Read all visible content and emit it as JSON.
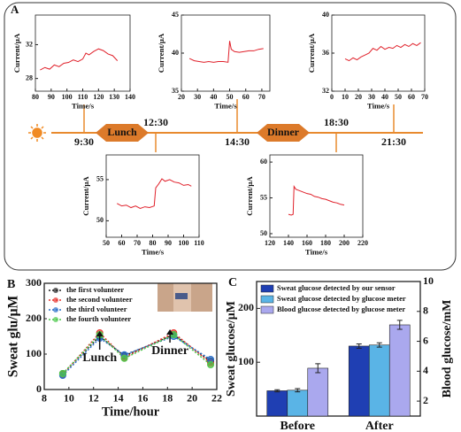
{
  "panel_a": {
    "label": "A",
    "times": [
      "9:30",
      "12:30",
      "14:30",
      "18:30",
      "21:30"
    ],
    "meals": [
      "Lunch",
      "Dinner"
    ]
  },
  "chart_data": [
    {
      "type": "line",
      "xlabel": "Time/s",
      "ylabel": "Current/μA",
      "color": "#e0202a",
      "x": [
        83,
        86,
        89,
        92,
        95,
        98,
        101,
        104,
        107,
        110,
        112,
        114,
        117,
        120,
        123,
        126,
        129,
        132
      ],
      "values": [
        29.0,
        29.3,
        29.1,
        29.6,
        29.4,
        29.8,
        29.9,
        30.2,
        30.0,
        30.3,
        31.0,
        30.8,
        31.2,
        31.5,
        31.3,
        30.9,
        30.7,
        30.1
      ],
      "xlim": [
        80,
        140
      ],
      "xticks": [
        80,
        90,
        100,
        110,
        120,
        130,
        140
      ],
      "ylim": [
        26.5,
        35.5
      ],
      "yticks": [
        28,
        32
      ]
    },
    {
      "type": "line",
      "xlabel": "Time/s",
      "ylabel": "Current/μA",
      "color": "#e0202a",
      "x": [
        25,
        28,
        31,
        34,
        37,
        40,
        43,
        46,
        49,
        50,
        51,
        53,
        56,
        59,
        62,
        65,
        68,
        71
      ],
      "values": [
        39.3,
        39.0,
        38.9,
        38.8,
        38.9,
        38.8,
        38.9,
        38.9,
        38.8,
        41.6,
        40.5,
        40.2,
        40.1,
        40.2,
        40.3,
        40.3,
        40.5,
        40.6
      ],
      "xlim": [
        20,
        75
      ],
      "xticks": [
        20,
        30,
        40,
        50,
        60,
        70
      ],
      "ylim": [
        35,
        45
      ],
      "yticks": [
        35,
        40,
        45
      ]
    },
    {
      "type": "line",
      "xlabel": "Time/s",
      "ylabel": "Current/μA",
      "color": "#e0202a",
      "x": [
        10,
        13,
        16,
        19,
        22,
        25,
        28,
        31,
        34,
        37,
        40,
        43,
        46,
        49,
        52,
        55,
        58,
        61,
        64,
        67
      ],
      "values": [
        35.4,
        35.2,
        35.5,
        35.3,
        35.6,
        35.8,
        36.0,
        36.5,
        36.3,
        36.7,
        36.4,
        36.6,
        36.5,
        36.8,
        36.6,
        36.9,
        36.7,
        37.0,
        36.8,
        37.1
      ],
      "xlim": [
        0,
        70
      ],
      "xticks": [
        0,
        10,
        20,
        30,
        40,
        50,
        60,
        70
      ],
      "ylim": [
        32,
        40
      ],
      "yticks": [
        32,
        36,
        40
      ]
    },
    {
      "type": "line",
      "xlabel": "Time/s",
      "ylabel": "Current/μA",
      "color": "#e0202a",
      "x": [
        57,
        60,
        63,
        66,
        69,
        72,
        75,
        78,
        81,
        82,
        84,
        86,
        88,
        91,
        94,
        97,
        100,
        103,
        105
      ],
      "values": [
        52.1,
        51.8,
        51.9,
        51.6,
        51.8,
        51.5,
        51.7,
        51.6,
        51.8,
        54.0,
        54.5,
        55.1,
        54.8,
        55.0,
        54.7,
        54.6,
        54.3,
        54.4,
        54.2
      ],
      "xlim": [
        50,
        110
      ],
      "xticks": [
        50,
        60,
        70,
        80,
        90,
        100,
        110
      ],
      "ylim": [
        48,
        58
      ],
      "yticks": [
        50,
        55
      ]
    },
    {
      "type": "line",
      "xlabel": "Time/s",
      "ylabel": "Current/μA",
      "color": "#e0202a",
      "x": [
        140,
        143,
        145,
        146,
        148,
        152,
        156,
        160,
        164,
        168,
        172,
        176,
        180,
        184,
        188,
        192,
        196,
        200
      ],
      "values": [
        52.7,
        52.6,
        52.7,
        56.6,
        56.2,
        56.0,
        55.8,
        55.6,
        55.5,
        55.2,
        55.1,
        54.9,
        54.8,
        54.6,
        54.4,
        54.3,
        54.1,
        54.0
      ],
      "xlim": [
        120,
        220
      ],
      "xticks": [
        120,
        140,
        160,
        180,
        200,
        220
      ],
      "ylim": [
        49.5,
        61
      ],
      "yticks": [
        50,
        55,
        60
      ]
    },
    {
      "type": "line",
      "panel_label": "B",
      "xlabel": "Time/hour",
      "ylabel": "Sweat glu/μM",
      "markers": true,
      "annotations": [
        "Lunch",
        "Dinner"
      ],
      "x": [
        9.5,
        12.5,
        14.5,
        18.5,
        21.5
      ],
      "series": [
        {
          "name": "the first volunteer",
          "color": "#222222",
          "values": [
            45,
            150,
            95,
            155,
            80
          ]
        },
        {
          "name": "the second volunteer",
          "color": "#e8322c",
          "values": [
            42,
            160,
            90,
            160,
            75
          ]
        },
        {
          "name": "the third volunteer",
          "color": "#2a6fc9",
          "values": [
            40,
            145,
            98,
            150,
            85
          ]
        },
        {
          "name": "the fourth volunteer",
          "color": "#4cc94a",
          "values": [
            45,
            155,
            88,
            155,
            70
          ]
        }
      ],
      "xlim": [
        8,
        22
      ],
      "xticks": [
        8,
        10,
        12,
        14,
        16,
        18,
        20,
        22
      ],
      "ylim": [
        0,
        300
      ],
      "yticks": [
        0,
        100,
        200,
        300
      ]
    },
    {
      "type": "bar",
      "panel_label": "C",
      "ylabel": "Sweat glucose/μM",
      "y2label": "Blood glucose/mM",
      "categories": [
        "Before",
        "After"
      ],
      "series": [
        {
          "name": "Sweat glucose detected by our sensor",
          "color": "#1f3fb3",
          "values": [
            47,
            130
          ],
          "errors": [
            2,
            4
          ]
        },
        {
          "name": "Sweat glucose detected by glucose meter",
          "color": "#5ab4e6",
          "values": [
            48,
            132
          ],
          "errors": [
            3,
            4
          ]
        },
        {
          "name": "Blood glucose detected by glucose meter",
          "color": "#aaa8ee",
          "values": [
            4.2,
            7.1
          ],
          "errors": [
            0.3,
            0.3
          ],
          "axis": "y2"
        }
      ],
      "ylim": [
        0,
        250
      ],
      "yticks": [
        100,
        200
      ],
      "y2lim": [
        1,
        10
      ],
      "y2ticks": [
        2,
        4,
        6,
        8,
        10
      ]
    }
  ]
}
